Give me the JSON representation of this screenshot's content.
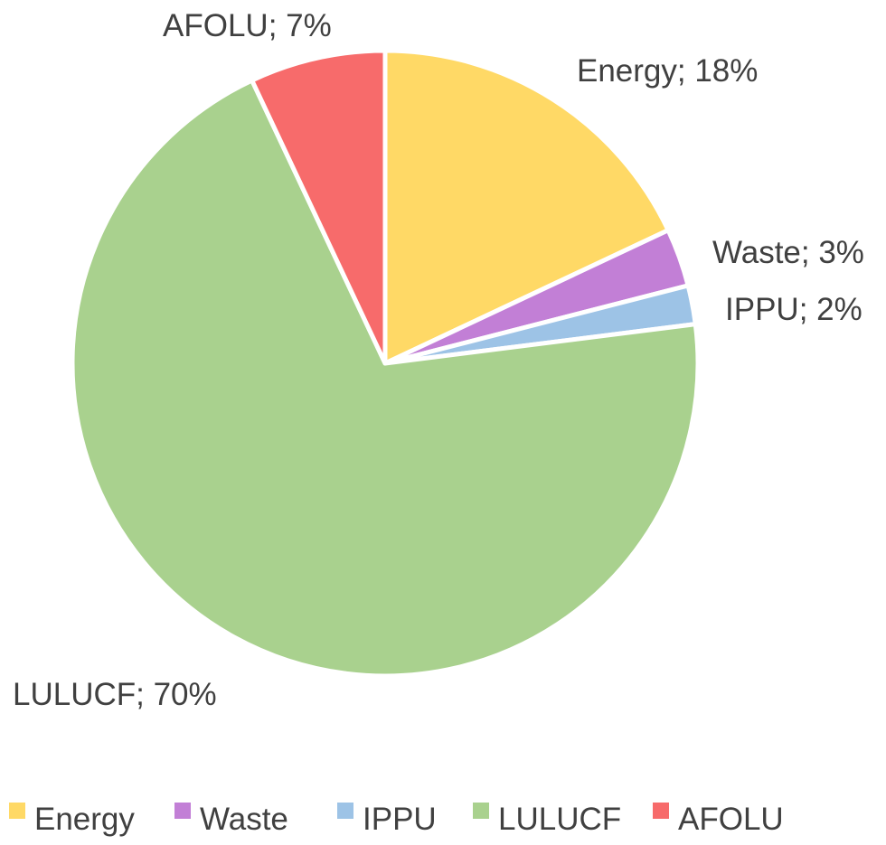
{
  "chart_data": {
    "type": "pie",
    "title": "",
    "legend_position": "bottom",
    "label_format": "category; percent",
    "slices": [
      {
        "name": "Energy",
        "value": 18,
        "label": "Energy; 18%",
        "color": "#FFD966"
      },
      {
        "name": "Waste",
        "value": 3,
        "label": "Waste; 3%",
        "color": "#C27FD6"
      },
      {
        "name": "IPPU",
        "value": 2,
        "label": "IPPU; 2%",
        "color": "#9DC3E6"
      },
      {
        "name": "LULUCF",
        "value": 70,
        "label": "LULUCF; 70%",
        "color": "#A9D18E"
      },
      {
        "name": "AFOLU",
        "value": 7,
        "label": "AFOLU; 7%",
        "color": "#F76B6B"
      }
    ]
  }
}
